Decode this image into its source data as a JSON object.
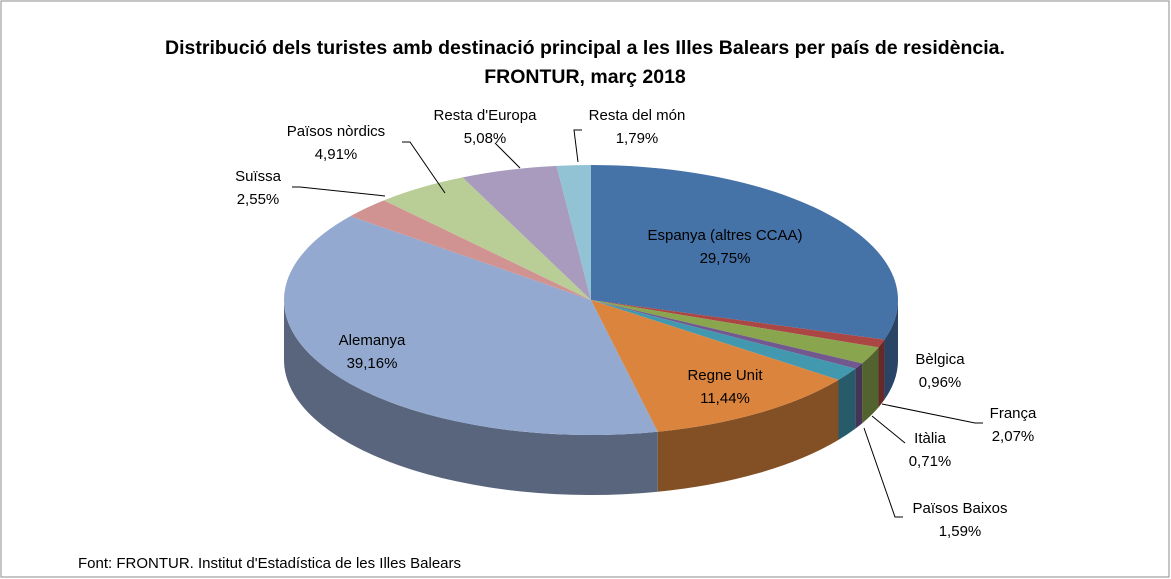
{
  "chart_data": {
    "type": "pie3d",
    "title": "Distribució dels turistes amb destinació principal a les Illes Balears per país de residència. FRONTUR, març 2018",
    "categories": [
      "Espanya (altres CCAA)",
      "Bèlgica",
      "França",
      "Itàlia",
      "Països Baixos",
      "Regne Unit",
      "Alemanya",
      "Suïssa",
      "Països nòrdics",
      "Resta d'Europa",
      "Resta del món"
    ],
    "values": [
      29.75,
      0.96,
      2.07,
      0.71,
      1.59,
      11.44,
      39.16,
      2.55,
      4.91,
      5.08,
      1.79
    ],
    "value_labels": [
      "29,75%",
      "0,96%",
      "2,07%",
      "0,71%",
      "1,59%",
      "11,44%",
      "39,16%",
      "2,55%",
      "4,91%",
      "5,08%",
      "1,79%"
    ],
    "colors": [
      "#4572a7",
      "#aa4643",
      "#89a54e",
      "#71588f",
      "#4198af",
      "#db843d",
      "#93a9cf",
      "#d19392",
      "#b9cd96",
      "#a99bbd",
      "#91c3d5"
    ],
    "source": "Font: FRONTUR. Institut d'Estadística de les Illes Balears"
  }
}
